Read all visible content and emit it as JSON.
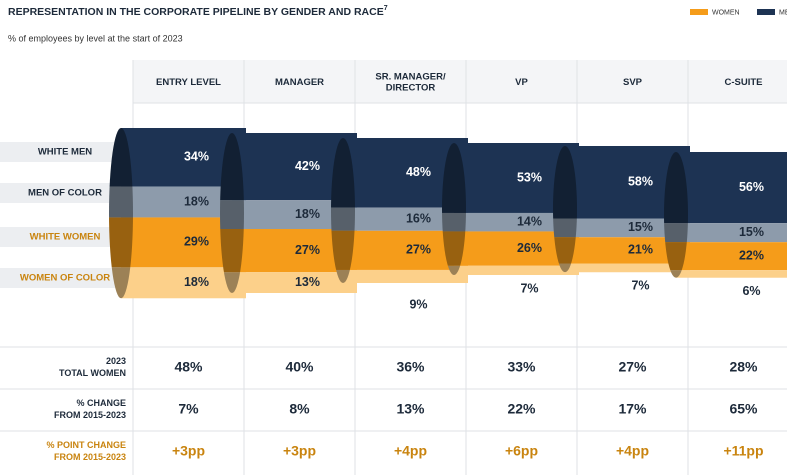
{
  "chart_data": {
    "type": "pipeline",
    "title": "REPRESENTATION IN THE CORPORATE PIPELINE BY GENDER AND RACE",
    "title_note": "7",
    "subtitle": "% of employees by level at the start of 2023",
    "legend": [
      {
        "name": "WOMEN",
        "color": "#f59c1a"
      },
      {
        "name": "MEN",
        "color": "#1d3353"
      }
    ],
    "categories": [
      [
        "ENTRY LEVEL"
      ],
      [
        "MANAGER"
      ],
      [
        "SR. MANAGER/",
        "DIRECTOR"
      ],
      [
        "VP"
      ],
      [
        "SVP"
      ],
      [
        "C-SUITE"
      ]
    ],
    "series": [
      {
        "name": "WHITE MEN",
        "color": "#1d3353",
        "values": [
          34,
          42,
          48,
          53,
          58,
          56
        ],
        "value_labels": [
          "34%",
          "42%",
          "48%",
          "53%",
          "58%",
          "56%"
        ]
      },
      {
        "name": "MEN OF COLOR",
        "color": "#8d9bab",
        "values": [
          18,
          18,
          16,
          14,
          15,
          15
        ],
        "value_labels": [
          "18%",
          "18%",
          "16%",
          "14%",
          "15%",
          "15%"
        ]
      },
      {
        "name": "WHITE WOMEN",
        "color": "#f59c1a",
        "values": [
          29,
          27,
          27,
          26,
          21,
          22
        ],
        "value_labels": [
          "29%",
          "27%",
          "27%",
          "26%",
          "21%",
          "22%"
        ]
      },
      {
        "name": "WOMEN OF COLOR",
        "color": "#fcd08a",
        "values": [
          18,
          13,
          9,
          7,
          7,
          6
        ],
        "value_labels": [
          "18%",
          "13%",
          "9%",
          "7%",
          "7%",
          "6%"
        ]
      }
    ],
    "table": {
      "rows": [
        {
          "label": [
            "2023",
            "TOTAL WOMEN"
          ],
          "values": [
            48,
            40,
            36,
            33,
            27,
            28
          ],
          "value_labels": [
            "48%",
            "40%",
            "36%",
            "33%",
            "27%",
            "28%"
          ]
        },
        {
          "label": [
            "% CHANGE",
            "FROM 2015-2023"
          ],
          "values": [
            7,
            8,
            13,
            22,
            17,
            65
          ],
          "value_labels": [
            "7%",
            "8%",
            "13%",
            "22%",
            "17%",
            "65%"
          ]
        },
        {
          "label": [
            "% POINT CHANGE",
            "FROM 2015-2023"
          ],
          "values": [
            3,
            3,
            4,
            6,
            4,
            11
          ],
          "value_labels": [
            "+3pp",
            "+3pp",
            "+4pp",
            "+6pp",
            "+4pp",
            "+11pp"
          ]
        }
      ]
    }
  }
}
